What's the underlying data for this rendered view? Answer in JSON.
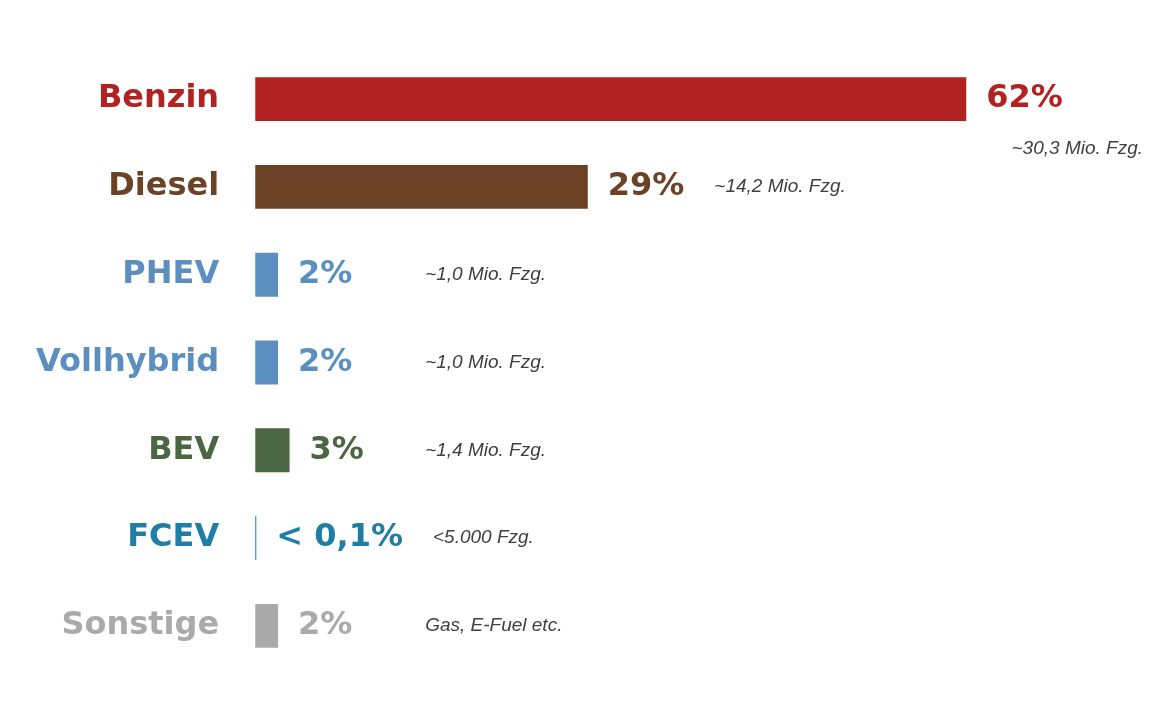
{
  "chart_data": {
    "type": "bar",
    "orientation": "horizontal",
    "categories": [
      "Benzin",
      "Diesel",
      "PHEV",
      "Vollhybrid",
      "BEV",
      "FCEV",
      "Sonstige"
    ],
    "values": [
      62,
      29,
      2,
      2,
      3,
      0.1,
      2
    ],
    "value_labels": [
      "62%",
      "29%",
      "2%",
      "2%",
      "3%",
      "< 0,1%",
      "2%"
    ],
    "colors": [
      "#b22222",
      "#6b4226",
      "#5b8fbf",
      "#5b8fbf",
      "#4a6741",
      "#1f7ea6",
      "#aaaaaa"
    ],
    "tick_labels": "y",
    "grid": false,
    "legend": false,
    "annotations": [
      "~30,3 Mio. Fzg.",
      "~14,2 Mio. Fzg.",
      "~1,0 Mio. Fzg.",
      "~1,0 Mio. Fzg.",
      "~1,4 Mio. Fzg.",
      "<5.000 Fzg.",
      "Gas, E-Fuel etc."
    ]
  }
}
